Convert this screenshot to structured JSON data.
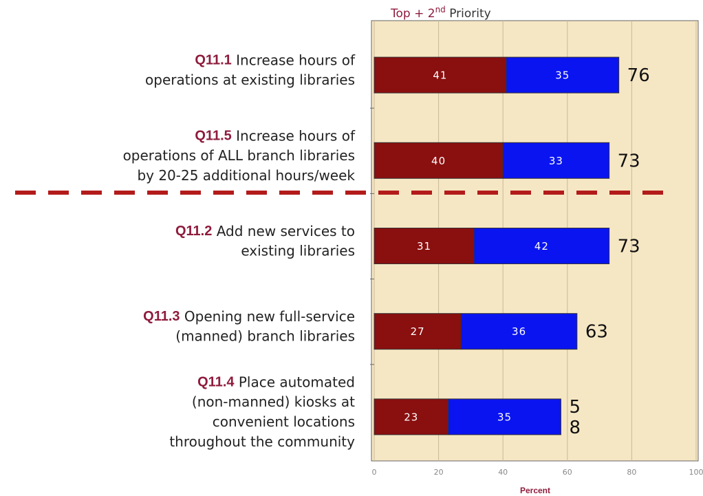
{
  "chart_data": {
    "type": "stacked_bar_horizontal",
    "title": {
      "prefix": "Top +  2",
      "sup": "nd",
      "suffix": " Priority"
    },
    "categories": [
      {
        "code": "Q11.1",
        "lines": [
          "Increase hours of",
          "operations at existing libraries"
        ]
      },
      {
        "code": "Q11.5",
        "lines": [
          "Increase hours of",
          "operations of ALL branch libraries",
          "by 20-25 additional hours/week"
        ]
      },
      {
        "code": "Q11.2",
        "lines": [
          "Add new services to",
          "existing libraries"
        ]
      },
      {
        "code": "Q11.3",
        "lines": [
          "Opening new full-service",
          "(manned) branch libraries"
        ]
      },
      {
        "code": "Q11.4",
        "lines": [
          "Place automated",
          "(non-manned) kiosks at",
          "convenient locations",
          "throughout the community"
        ]
      }
    ],
    "series": [
      {
        "color": "#8a0f0f",
        "values": [
          41,
          40,
          31,
          27,
          23
        ]
      },
      {
        "color": "#0a14f0",
        "values": [
          35,
          33,
          42,
          36,
          35
        ]
      }
    ],
    "totals": [
      76,
      73,
      73,
      63,
      58
    ],
    "total_labels": [
      "76",
      "73",
      "73",
      "63",
      "5\n8"
    ],
    "xlabel": "Percent",
    "xlim": [
      0,
      100
    ],
    "xticks": [
      0,
      20,
      40,
      60,
      80,
      100
    ],
    "grid": true
  }
}
